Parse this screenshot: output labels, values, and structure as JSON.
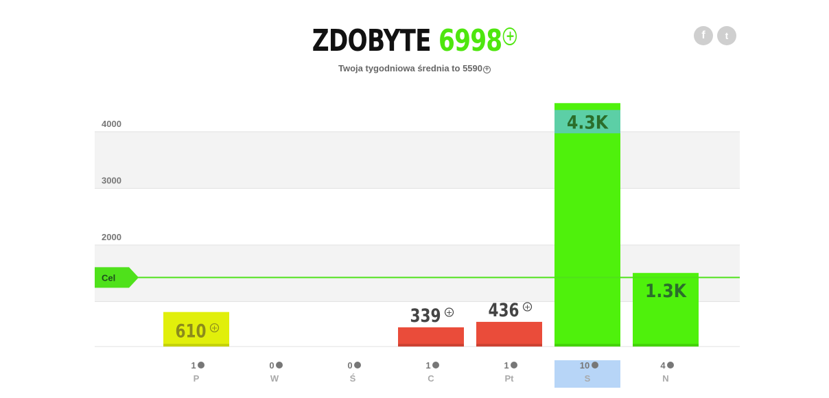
{
  "header": {
    "title_label": "ZDOBYTE",
    "title_value": "6998",
    "subtitle": "Twoja tygodniowa średnia to 5590"
  },
  "social": {
    "facebook_label": "f",
    "twitter_label": "t"
  },
  "chart_data": {
    "type": "bar",
    "title": "",
    "ylim": [
      0,
      4000
    ],
    "y_ticks": [
      "4000",
      "3000",
      "2000"
    ],
    "goal": {
      "label": "Cel",
      "value": 1220
    },
    "categories": [
      "P",
      "W",
      "Ś",
      "C",
      "Pt",
      "S",
      "N"
    ],
    "values": [
      610,
      0,
      0,
      339,
      436,
      4300,
      1300
    ],
    "value_labels": [
      "610",
      "",
      "",
      "339",
      "436",
      "4.3K",
      "1.3K"
    ],
    "value_label_has_icon": [
      true,
      false,
      false,
      true,
      true,
      false,
      false
    ],
    "session_counts": [
      "1",
      "0",
      "0",
      "1",
      "1",
      "10",
      "4"
    ],
    "selected_index": 5,
    "colors": {
      "P": "#e1ef0b",
      "C": "#ea4c3a",
      "Pt": "#ea4c3a",
      "S": "#4ff10c",
      "N": "#4ff10c",
      "goal_line": "#4fe11b",
      "selected_band": "#b7d5f7",
      "label_band": "#5ccfa6",
      "grid_band": "#f3f3f3"
    }
  }
}
